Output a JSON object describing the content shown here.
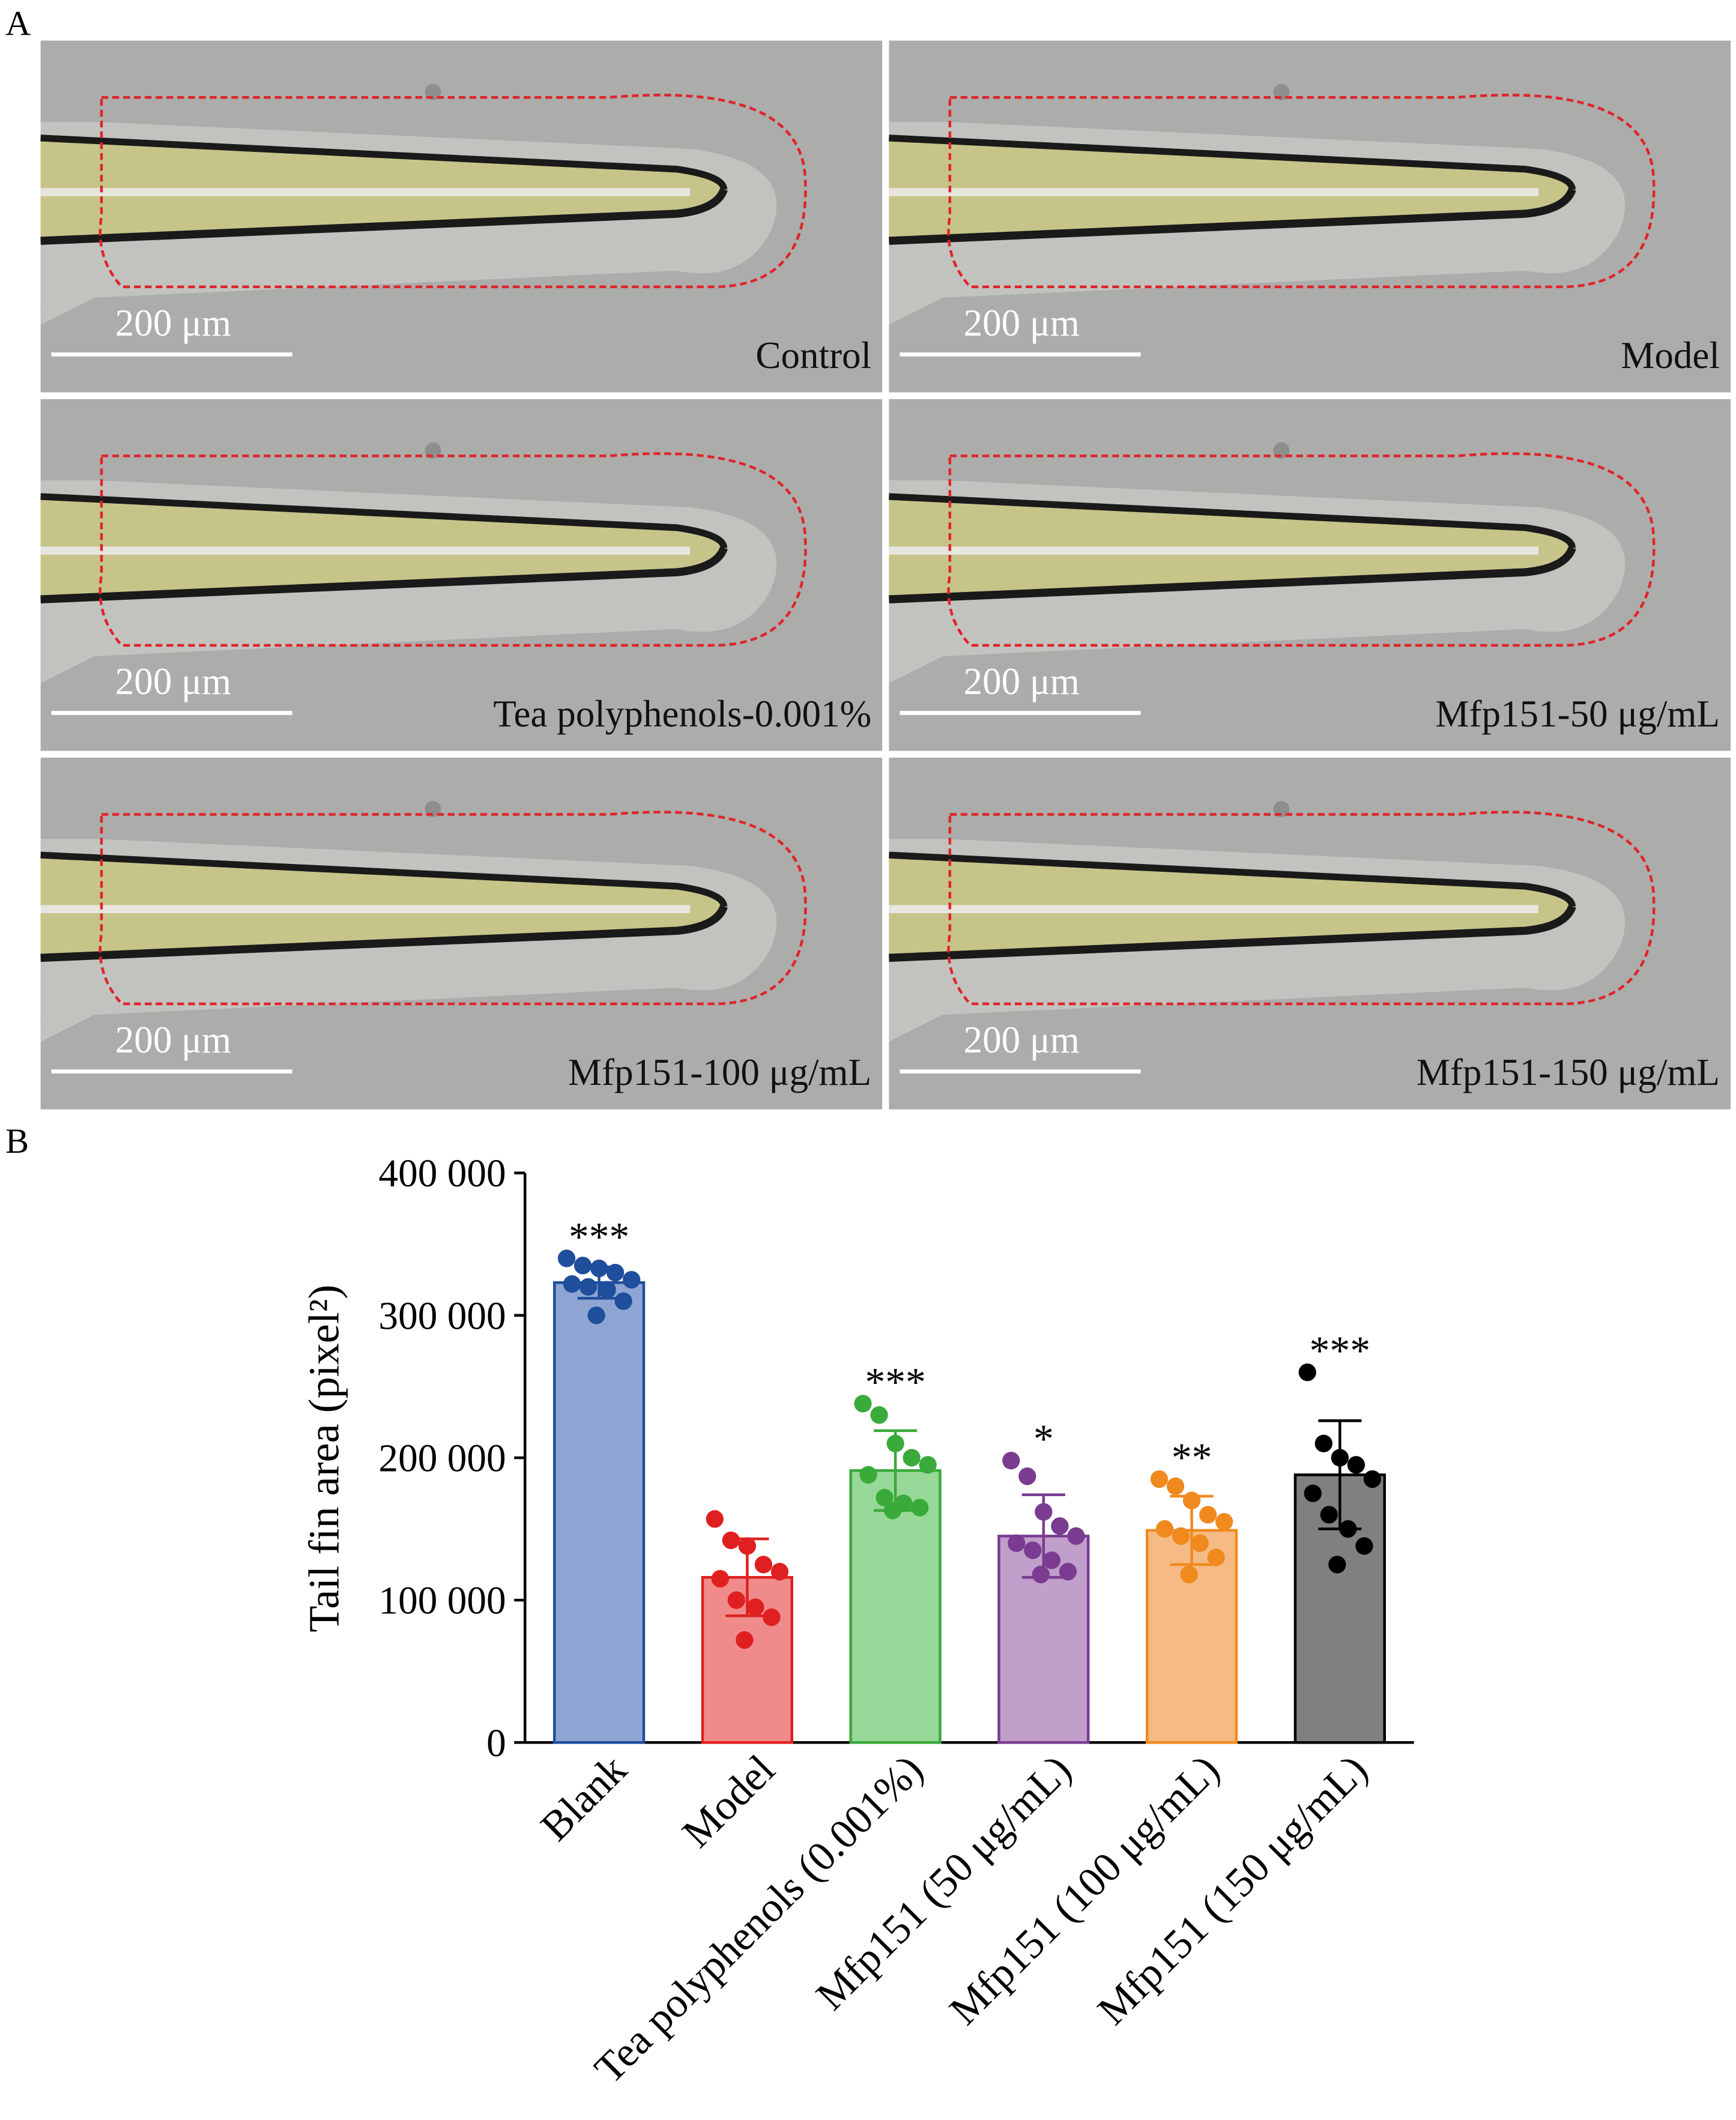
{
  "figure": {
    "panel_a_label": "A",
    "panel_b_label": "B",
    "panels": [
      {
        "caption": "Control",
        "scale_bar": "200 μm"
      },
      {
        "caption": "Model",
        "scale_bar": "200 μm"
      },
      {
        "caption": "Tea polyphenols-0.001%",
        "scale_bar": "200 μm"
      },
      {
        "caption": "Mfp151-50 μg/mL",
        "scale_bar": "200 μm"
      },
      {
        "caption": "Mfp151-100 μg/mL",
        "scale_bar": "200 μm"
      },
      {
        "caption": "Mfp151-150 μg/mL",
        "scale_bar": "200 μm"
      }
    ]
  },
  "chart_data": {
    "type": "bar",
    "y_label": "Tail fin area (pixel²)",
    "categories": [
      "Blank",
      "Model",
      "Tea polyphenols (0.001%)",
      "Mfp151 (50 μg/mL)",
      "Mfp151 (100 μg/mL)",
      "Mfp151 (150 μg/mL)"
    ],
    "values": [
      323000,
      116000,
      191000,
      145000,
      149000,
      188000
    ],
    "errors": [
      11000,
      27000,
      28000,
      29000,
      24000,
      38000
    ],
    "significance": [
      "***",
      null,
      "***",
      "*",
      "**",
      "***"
    ],
    "points": [
      [
        340000,
        335000,
        333000,
        330000,
        325000,
        322000,
        320000,
        318000,
        310000,
        300000
      ],
      [
        157000,
        142000,
        138000,
        125000,
        120000,
        115000,
        100000,
        95000,
        88000,
        72000
      ],
      [
        238000,
        230000,
        210000,
        200000,
        195000,
        188000,
        172000,
        168000,
        165000,
        163000
      ],
      [
        198000,
        187000,
        162000,
        152000,
        145000,
        140000,
        135000,
        128000,
        120000,
        118000
      ],
      [
        185000,
        180000,
        170000,
        160000,
        155000,
        150000,
        145000,
        140000,
        130000,
        118000
      ],
      [
        260000,
        210000,
        200000,
        195000,
        185000,
        175000,
        160000,
        150000,
        138000,
        125000
      ]
    ],
    "fill_colors": [
      "#8ea5d4",
      "#f08b8b",
      "#98d898",
      "#c09fcb",
      "#f6bb84",
      "#808080"
    ],
    "edge_colors": [
      "#1f4e9c",
      "#e02020",
      "#3aaa3a",
      "#7a3b91",
      "#f08a1e",
      "#000000"
    ],
    "ylim": [
      0,
      400000
    ],
    "yticks": [
      0,
      {
        "value": 100000,
        "label": "100 000"
      },
      {
        "value": 200000,
        "label": "200 000"
      },
      {
        "value": 300000,
        "label": "300 000"
      },
      {
        "value": 400000,
        "label": "400 000"
      }
    ]
  }
}
